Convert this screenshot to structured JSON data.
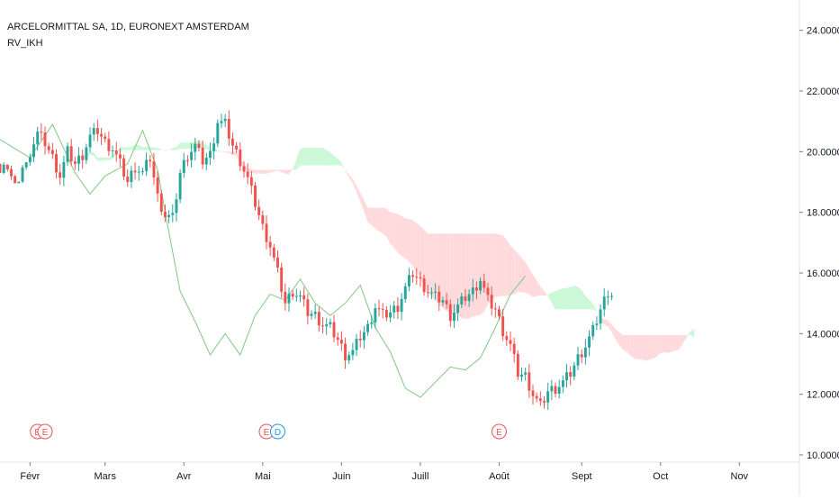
{
  "chart": {
    "title": "ARCELORMITTAL SA, 1D, EURONEXT AMSTERDAM",
    "indicator": "RV_IKH",
    "colors": {
      "up": "#26a69a",
      "down": "#ef5350",
      "cloud_bull": "#b9f6ca",
      "cloud_bear": "#ffcdd2",
      "cloud_orange": "#ffe0b2",
      "cloud_blue": "#d1d4ff",
      "lagging_line": "#81c784",
      "earnings_marker": "#ef5350",
      "dividend_marker": "#2196f3",
      "axis_text": "#131722",
      "axis_line": "#e0e3eb"
    }
  },
  "chart_data": {
    "type": "candlestick",
    "title": "ARCELORMITTAL SA, 1D, EURONEXT AMSTERDAM",
    "y_axis": {
      "min": 10,
      "max": 25,
      "ticks": [
        "10.00000",
        "12.00000",
        "14.00000",
        "16.00000",
        "18.00000",
        "20.00000",
        "22.00000",
        "24.00000"
      ],
      "position": "right"
    },
    "x_axis": {
      "ticks": [
        "Févr",
        "Mars",
        "Avr",
        "Mai",
        "Juin",
        "Juill",
        "Août",
        "Sept",
        "Oct",
        "Nov"
      ],
      "tick_day_index": [
        0,
        20,
        41,
        62,
        83,
        104,
        125,
        147,
        168,
        189
      ],
      "day_range": [
        -8,
        205
      ]
    },
    "close_series": [
      [
        -8,
        19.6
      ],
      [
        -6,
        19.9
      ],
      [
        -4,
        19.2
      ],
      [
        -2,
        19.9
      ],
      [
        0,
        20.0
      ],
      [
        2,
        20.6
      ],
      [
        4,
        20.3
      ],
      [
        6,
        19.8
      ],
      [
        8,
        19.2
      ],
      [
        10,
        20.0
      ],
      [
        12,
        19.6
      ],
      [
        14,
        19.9
      ],
      [
        16,
        20.5
      ],
      [
        18,
        20.7
      ],
      [
        20,
        20.3
      ],
      [
        22,
        20.1
      ],
      [
        24,
        19.6
      ],
      [
        26,
        19.0
      ],
      [
        28,
        19.5
      ],
      [
        30,
        19.3
      ],
      [
        32,
        19.8
      ],
      [
        34,
        18.5
      ],
      [
        36,
        17.9
      ],
      [
        38,
        17.8
      ],
      [
        40,
        19.3
      ],
      [
        42,
        19.9
      ],
      [
        44,
        20.2
      ],
      [
        46,
        19.7
      ],
      [
        48,
        19.9
      ],
      [
        50,
        21.0
      ],
      [
        52,
        20.9
      ],
      [
        54,
        20.2
      ],
      [
        56,
        19.7
      ],
      [
        58,
        19.1
      ],
      [
        60,
        18.3
      ],
      [
        62,
        17.5
      ],
      [
        64,
        16.9
      ],
      [
        66,
        16.0
      ],
      [
        68,
        15.0
      ],
      [
        70,
        15.4
      ],
      [
        72,
        15.2
      ],
      [
        74,
        14.7
      ],
      [
        76,
        14.6
      ],
      [
        78,
        14.3
      ],
      [
        80,
        14.2
      ],
      [
        82,
        13.8
      ],
      [
        84,
        13.3
      ],
      [
        86,
        13.4
      ],
      [
        88,
        13.9
      ],
      [
        90,
        14.2
      ],
      [
        92,
        14.9
      ],
      [
        94,
        14.6
      ],
      [
        96,
        14.7
      ],
      [
        98,
        14.9
      ],
      [
        100,
        15.5
      ],
      [
        102,
        16.0
      ],
      [
        104,
        15.7
      ],
      [
        106,
        15.4
      ],
      [
        108,
        15.2
      ],
      [
        110,
        15.1
      ],
      [
        112,
        14.6
      ],
      [
        114,
        14.9
      ],
      [
        116,
        15.2
      ],
      [
        118,
        15.4
      ],
      [
        120,
        15.8
      ],
      [
        122,
        15.1
      ],
      [
        124,
        14.8
      ],
      [
        126,
        14.1
      ],
      [
        128,
        13.6
      ],
      [
        130,
        12.7
      ],
      [
        132,
        12.6
      ],
      [
        134,
        12.0
      ],
      [
        136,
        11.6
      ],
      [
        138,
        12.1
      ],
      [
        140,
        12.2
      ],
      [
        142,
        12.4
      ],
      [
        144,
        12.7
      ],
      [
        146,
        13.2
      ],
      [
        148,
        13.6
      ],
      [
        150,
        14.1
      ],
      [
        152,
        14.8
      ],
      [
        154,
        15.4
      ],
      [
        155,
        15.3
      ]
    ],
    "series": [
      {
        "type": "line",
        "values": [
          [
            -8,
            20.4
          ],
          [
            0,
            19.8
          ],
          [
            6,
            20.9
          ],
          [
            12,
            19.3
          ],
          [
            16,
            18.6
          ],
          [
            20,
            19.2
          ],
          [
            26,
            19.6
          ],
          [
            30,
            20.7
          ],
          [
            34,
            19.4
          ],
          [
            36,
            18.0
          ],
          [
            40,
            15.4
          ],
          [
            44,
            14.4
          ],
          [
            48,
            13.3
          ],
          [
            52,
            14.0
          ],
          [
            56,
            13.3
          ],
          [
            60,
            14.6
          ],
          [
            64,
            15.3
          ],
          [
            68,
            15.1
          ],
          [
            72,
            15.8
          ],
          [
            76,
            15.0
          ],
          [
            80,
            14.6
          ],
          [
            84,
            15.0
          ],
          [
            88,
            15.6
          ],
          [
            92,
            14.2
          ],
          [
            96,
            13.4
          ],
          [
            100,
            12.2
          ],
          [
            104,
            11.9
          ],
          [
            108,
            12.4
          ],
          [
            112,
            12.9
          ],
          [
            116,
            12.8
          ],
          [
            120,
            13.2
          ],
          [
            124,
            14.2
          ],
          [
            128,
            15.3
          ],
          [
            132,
            15.9
          ]
        ]
      }
    ],
    "events": [
      {
        "label": "E",
        "type": "earnings",
        "day": 2
      },
      {
        "label": "E",
        "type": "earnings",
        "day": 4
      },
      {
        "label": "E",
        "type": "earnings",
        "day": 63
      },
      {
        "label": "D",
        "type": "dividend",
        "day": 66
      },
      {
        "label": "E",
        "type": "earnings",
        "day": 125
      }
    ]
  }
}
